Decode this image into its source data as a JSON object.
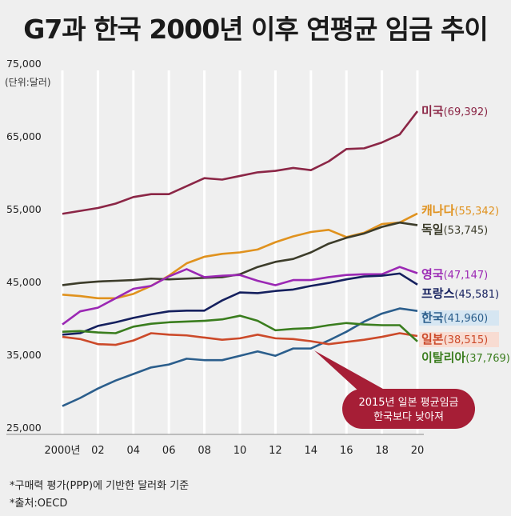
{
  "title": "G7과 한국 2000년 이후 연평균 임금 추이",
  "unit_label": "(단위:달러)",
  "footnotes": [
    "*구매력 평가(PPP)에 기반한 달러화 기준",
    "*출처:OECD"
  ],
  "callout": {
    "line1": "2015년 일본 평균임금",
    "line2": "한국보다 낮아져",
    "color": "#a61e36"
  },
  "chart_data": {
    "type": "line",
    "x": [
      2000,
      2001,
      2002,
      2003,
      2004,
      2005,
      2006,
      2007,
      2008,
      2009,
      2010,
      2011,
      2012,
      2013,
      2014,
      2015,
      2016,
      2017,
      2018,
      2019,
      2020
    ],
    "xtick_values": [
      2000,
      2002,
      2004,
      2006,
      2008,
      2010,
      2012,
      2014,
      2016,
      2018,
      2020
    ],
    "xtick_labels": [
      "2000년",
      "02",
      "04",
      "06",
      "08",
      "10",
      "12",
      "14",
      "16",
      "18",
      "20"
    ],
    "yticks": [
      25000,
      35000,
      45000,
      55000,
      65000,
      75000
    ],
    "ytick_labels": [
      "25,000",
      "35,000",
      "45,000",
      "55,000",
      "65,000",
      "75,000"
    ],
    "ylim": [
      25000,
      75000
    ],
    "series": [
      {
        "name": "미국",
        "value_label": "(69,392)",
        "color": "#8b2646",
        "values": [
          55300,
          55700,
          56100,
          56700,
          57600,
          58000,
          58000,
          59100,
          60200,
          60000,
          60500,
          61000,
          61200,
          61600,
          61300,
          62500,
          64200,
          64300,
          65100,
          66200,
          69392
        ]
      },
      {
        "name": "캐나다",
        "value_label": "(55,342)",
        "color": "#e0921e",
        "values": [
          44200,
          44000,
          43700,
          43700,
          44300,
          45400,
          46800,
          48500,
          49400,
          49800,
          50000,
          50400,
          51400,
          52200,
          52800,
          53100,
          52100,
          52700,
          53900,
          54100,
          55342
        ]
      },
      {
        "name": "독일",
        "value_label": "(53,745)",
        "color": "#3c3c2a",
        "values": [
          45500,
          45800,
          46000,
          46100,
          46200,
          46400,
          46300,
          46400,
          46500,
          46600,
          47000,
          48000,
          48700,
          49100,
          50000,
          51200,
          52000,
          52600,
          53500,
          54100,
          53745
        ]
      },
      {
        "name": "영국",
        "value_label": "(47,147)",
        "color": "#9b28b4",
        "values": [
          40100,
          41900,
          42400,
          43700,
          45000,
          45400,
          46700,
          47700,
          46600,
          46800,
          46900,
          46100,
          45500,
          46200,
          46200,
          46600,
          46900,
          47000,
          47000,
          48000,
          47147
        ]
      },
      {
        "name": "프랑스",
        "value_label": "(45,581)",
        "color": "#15205e",
        "values": [
          38700,
          38900,
          39900,
          40400,
          41000,
          41500,
          41900,
          42000,
          42000,
          43400,
          44500,
          44400,
          44700,
          44900,
          45400,
          45800,
          46300,
          46700,
          46800,
          47100,
          45581
        ]
      },
      {
        "name": "한국",
        "value_label": "(41,960)",
        "color": "#2b5e8c",
        "highlight": "#d6e6f2",
        "values": [
          28900,
          30000,
          31300,
          32400,
          33300,
          34200,
          34600,
          35400,
          35200,
          35200,
          35800,
          36400,
          35800,
          36800,
          36800,
          37900,
          39100,
          40500,
          41600,
          42300,
          41960
        ]
      },
      {
        "name": "일본",
        "value_label": "(38,515)",
        "color": "#cc4a2a",
        "highlight": "#f8dcd2",
        "values": [
          38400,
          38100,
          37400,
          37300,
          37900,
          38900,
          38700,
          38600,
          38300,
          38000,
          38200,
          38700,
          38200,
          38100,
          37800,
          37400,
          37700,
          38000,
          38400,
          38900,
          38515
        ]
      },
      {
        "name": "이탈리아",
        "value_label": "(37,769)",
        "color": "#3a7d1e",
        "values": [
          39100,
          39200,
          39000,
          38900,
          39800,
          40200,
          40400,
          40500,
          40600,
          40800,
          41300,
          40600,
          39300,
          39500,
          39600,
          40000,
          40300,
          40100,
          40000,
          40000,
          37769
        ]
      }
    ]
  }
}
